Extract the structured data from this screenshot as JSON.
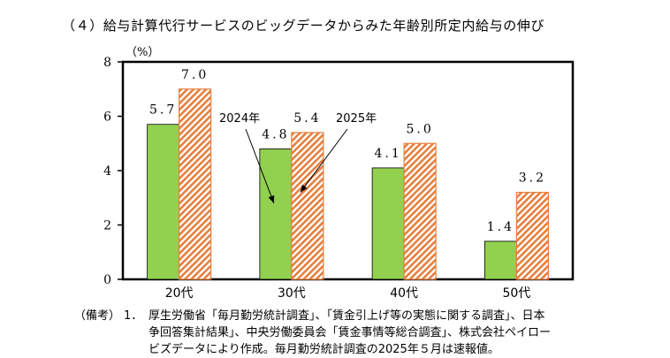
{
  "chart_data": {
    "type": "bar",
    "title": "（４）給与計算代行サービスのビッグデータからみた年齢別所定内給与の伸び",
    "ylabel": "（%）",
    "xlabel": "",
    "ylim": [
      0,
      8
    ],
    "yticks": [
      0,
      2,
      4,
      6,
      8
    ],
    "categories": [
      "20代",
      "30代",
      "40代",
      "50代"
    ],
    "series": [
      {
        "name": "2024年",
        "values": [
          5.7,
          4.8,
          4.1,
          1.4
        ],
        "value_labels": [
          "5.7",
          "4.8",
          "4.1",
          "1.4"
        ],
        "color": "#92d050",
        "pattern": "solid"
      },
      {
        "name": "2025年",
        "values": [
          7.0,
          5.4,
          5.0,
          3.2
        ],
        "value_labels": [
          "7.0",
          "5.4",
          "5.0",
          "3.2"
        ],
        "color": "#e5803f",
        "pattern": "diagonal-hatch"
      }
    ],
    "grid": false,
    "legend": "annotation-arrows"
  },
  "notes": {
    "label": "（備考）",
    "number": "1．",
    "line1": "厚生労働省「毎月勤労統計調査」、「賃金引上げ等の実態に関する調査」、日本",
    "line2": "争回答集計結果」、中央労働委員会「賃金事情等総合調査」、株式会社ペイロー",
    "line3": "ビズデータにより作成。毎月勤労統計調査の2025年５月は速報値。"
  }
}
